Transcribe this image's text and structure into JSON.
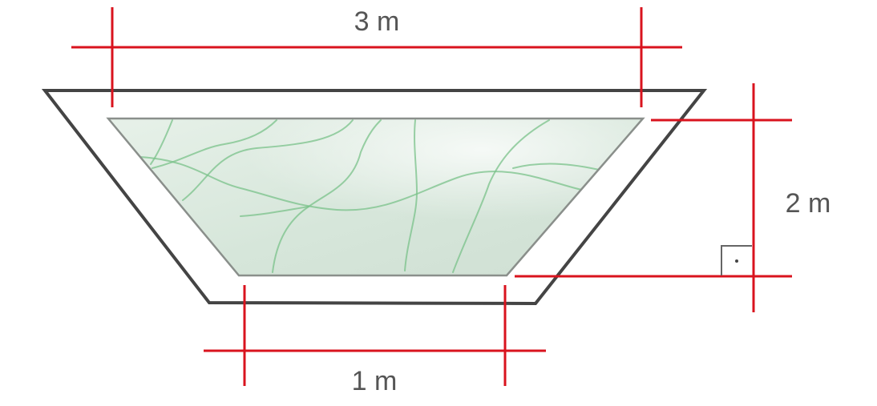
{
  "dimensions": {
    "top": "3 m",
    "bottom": "1 m",
    "height": "2 m"
  },
  "colors": {
    "dimension_lines": "#d9131e",
    "outline": "#444444",
    "water": "#dcebe0",
    "water_lines": "#79c289",
    "label_text": "#555555"
  }
}
